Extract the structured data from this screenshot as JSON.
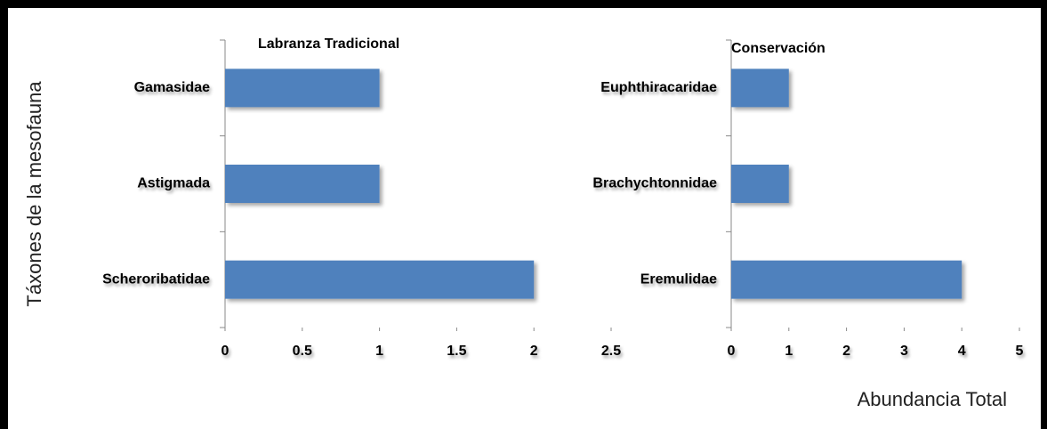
{
  "chart_data": [
    {
      "type": "bar",
      "orientation": "horizontal",
      "title": "Labranza Tradicional",
      "ylabel": "Táxones de la mesofauna",
      "categories": [
        "Gamasidae",
        "Astigmada",
        "Scheroribatidae"
      ],
      "values": [
        1,
        1,
        2
      ],
      "color": "#4f81bd",
      "xlim": [
        0,
        2.5
      ],
      "xticks": [
        0,
        0.5,
        1,
        1.5,
        2,
        2.5
      ]
    },
    {
      "type": "bar",
      "orientation": "horizontal",
      "title": "Conservación",
      "xlabel": "Abundancia Total",
      "categories": [
        "Euphthiracaridae",
        "Brachychtonnidae",
        "Eremulidae"
      ],
      "values": [
        1,
        1,
        4
      ],
      "color": "#4f81bd",
      "xlim": [
        0,
        5
      ],
      "xticks": [
        0,
        1,
        2,
        3,
        4,
        5
      ]
    }
  ]
}
